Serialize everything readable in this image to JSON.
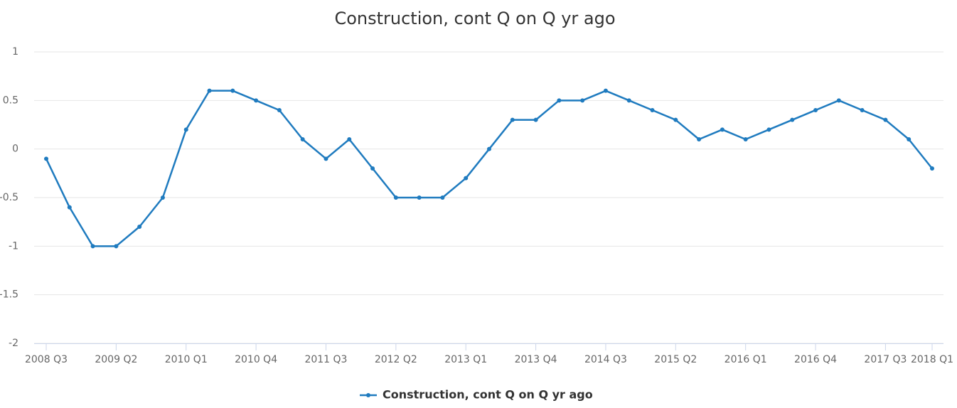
{
  "chart_data": {
    "type": "line",
    "title": "Construction, cont Q on Q yr ago",
    "categories": [
      "2008 Q3",
      null,
      null,
      "2009 Q2",
      null,
      null,
      "2010 Q1",
      null,
      null,
      "2010 Q4",
      null,
      null,
      "2011 Q3",
      null,
      null,
      "2012 Q2",
      null,
      null,
      "2013 Q1",
      null,
      null,
      "2013 Q4",
      null,
      null,
      "2014 Q3",
      null,
      null,
      "2015 Q2",
      null,
      null,
      "2016 Q1",
      null,
      null,
      "2016 Q4",
      null,
      null,
      "2017 Q3",
      null,
      "2018 Q1"
    ],
    "series": [
      {
        "name": "Construction, cont Q on Q yr ago",
        "color": "#1f7bbf",
        "values": [
          -0.1,
          -0.6,
          -1.0,
          -1.0,
          -0.8,
          -0.5,
          0.2,
          0.6,
          0.6,
          0.5,
          0.4,
          0.1,
          -0.1,
          0.1,
          -0.2,
          -0.5,
          -0.5,
          -0.5,
          -0.3,
          0.0,
          0.3,
          0.3,
          0.5,
          0.5,
          0.6,
          0.5,
          0.4,
          0.3,
          0.1,
          0.2,
          0.1,
          0.2,
          0.3,
          0.4,
          0.5,
          0.4,
          0.3,
          0.1,
          -0.2
        ]
      }
    ],
    "ylim": [
      -2,
      1
    ],
    "yticks": [
      -2,
      -1.5,
      -1,
      -0.5,
      0,
      0.5,
      1
    ],
    "grid": true
  }
}
